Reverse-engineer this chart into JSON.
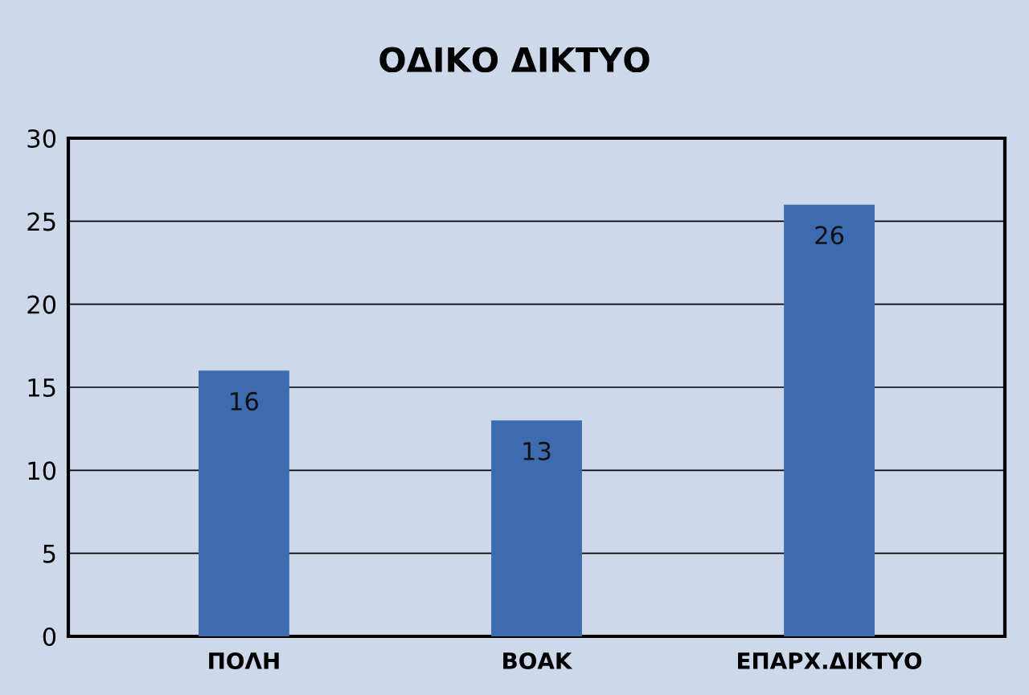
{
  "chart_data": {
    "type": "bar",
    "title": "ΟΔΙΚΟ ΔΙΚΤΥΟ",
    "categories": [
      "ΠΟΛΗ",
      "ΒΟΑΚ",
      "ΕΠΑΡΧ.ΔΙΚΤΥΟ"
    ],
    "values": [
      16,
      13,
      26
    ],
    "color": "#3d6bb0",
    "ylim": [
      0,
      30
    ],
    "yticks": [
      0,
      5,
      10,
      15,
      20,
      25,
      30
    ],
    "grid": "y",
    "data_labels": true,
    "legend": false
  }
}
